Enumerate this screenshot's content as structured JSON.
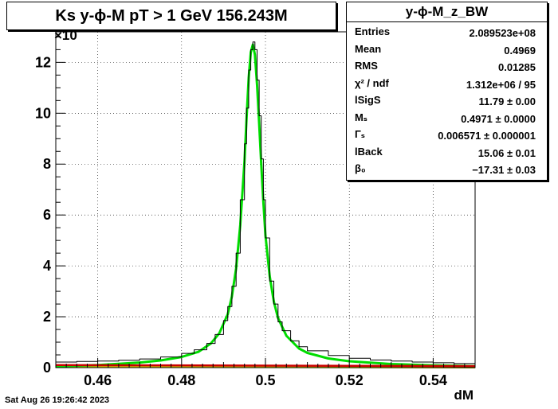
{
  "chart_data": {
    "type": "line",
    "title": "Ks y-ϕ-M pT > 1 GeV  156.243M",
    "xlabel": "dM",
    "ylabel": "",
    "y_multiplier_label": "×10",
    "xlim": [
      0.45,
      0.55
    ],
    "ylim": [
      0,
      13.2
    ],
    "x_ticks": [
      0.46,
      0.48,
      0.5,
      0.52,
      0.54
    ],
    "x_tick_labels": [
      "0.46",
      "0.48",
      "0.5",
      "0.52",
      "0.54"
    ],
    "y_ticks": [
      0,
      2,
      4,
      6,
      8,
      10,
      12
    ],
    "y_tick_labels": [
      "0",
      "2",
      "4",
      "6",
      "8",
      "10",
      "12"
    ],
    "grid": true,
    "series": [
      {
        "name": "data-histogram",
        "style": "step",
        "color": "#000000",
        "x": [
          0.45,
          0.455,
          0.46,
          0.465,
          0.47,
          0.475,
          0.48,
          0.483,
          0.486,
          0.488,
          0.49,
          0.491,
          0.492,
          0.493,
          0.494,
          0.495,
          0.4955,
          0.496,
          0.4965,
          0.497,
          0.4975,
          0.498,
          0.4985,
          0.499,
          0.4995,
          0.5,
          0.501,
          0.502,
          0.503,
          0.504,
          0.506,
          0.508,
          0.51,
          0.515,
          0.52,
          0.525,
          0.53,
          0.535,
          0.54,
          0.545,
          0.55
        ],
        "y": [
          0.22,
          0.24,
          0.26,
          0.29,
          0.34,
          0.42,
          0.56,
          0.7,
          0.95,
          1.3,
          1.85,
          2.4,
          3.2,
          4.5,
          6.6,
          8.8,
          10.2,
          11.7,
          12.5,
          12.8,
          12.5,
          11.3,
          9.9,
          8.2,
          6.6,
          5.1,
          3.4,
          2.5,
          1.8,
          1.45,
          1.05,
          0.82,
          0.66,
          0.48,
          0.37,
          0.3,
          0.26,
          0.22,
          0.19,
          0.16,
          0.12
        ]
      },
      {
        "name": "fit-total",
        "style": "line",
        "color": "#00dd00",
        "x": [
          0.45,
          0.46,
          0.47,
          0.475,
          0.48,
          0.484,
          0.487,
          0.489,
          0.491,
          0.492,
          0.493,
          0.494,
          0.495,
          0.4955,
          0.496,
          0.4965,
          0.497,
          0.4975,
          0.498,
          0.4985,
          0.499,
          0.4995,
          0.5,
          0.501,
          0.502,
          0.503,
          0.505,
          0.508,
          0.51,
          0.515,
          0.52,
          0.53,
          0.54,
          0.55
        ],
        "y": [
          0.05,
          0.1,
          0.2,
          0.28,
          0.42,
          0.62,
          0.95,
          1.35,
          2.1,
          2.8,
          3.9,
          5.6,
          8.1,
          9.8,
          11.4,
          12.4,
          12.7,
          12.3,
          11.1,
          9.6,
          8.0,
          6.5,
          5.2,
          3.6,
          2.6,
          1.95,
          1.25,
          0.75,
          0.58,
          0.36,
          0.25,
          0.14,
          0.09,
          0.06
        ]
      },
      {
        "name": "background-line",
        "style": "line",
        "color": "#cc0000",
        "x": [
          0.45,
          0.55
        ],
        "y": [
          0.1,
          0.06
        ]
      },
      {
        "name": "background-fill",
        "style": "line",
        "color": "#cccc00",
        "x": [
          0.45,
          0.55
        ],
        "y": [
          0.03,
          0.01
        ]
      }
    ]
  },
  "stats": {
    "title": "y-ϕ-M_z_BW",
    "rows": [
      {
        "label": "Entries",
        "value": "2.089523e+08"
      },
      {
        "label": "Mean",
        "value": "0.4969"
      },
      {
        "label": "RMS",
        "value": "0.01285"
      },
      {
        "label": "χ² / ndf",
        "value": "1.312e+06 / 95"
      },
      {
        "label": "lSigS",
        "value": "11.79 ± 0.00"
      },
      {
        "label": "Mₛ",
        "value": "0.4971 ± 0.0000"
      },
      {
        "label": "Γₛ",
        "value": "0.006571 ± 0.000001"
      },
      {
        "label": "lBack",
        "value": "15.06 ± 0.01"
      },
      {
        "label": "β₀",
        "value": "−17.31 ± 0.03"
      }
    ]
  },
  "timestamp": "Sat Aug 26 19:26:42 2023"
}
